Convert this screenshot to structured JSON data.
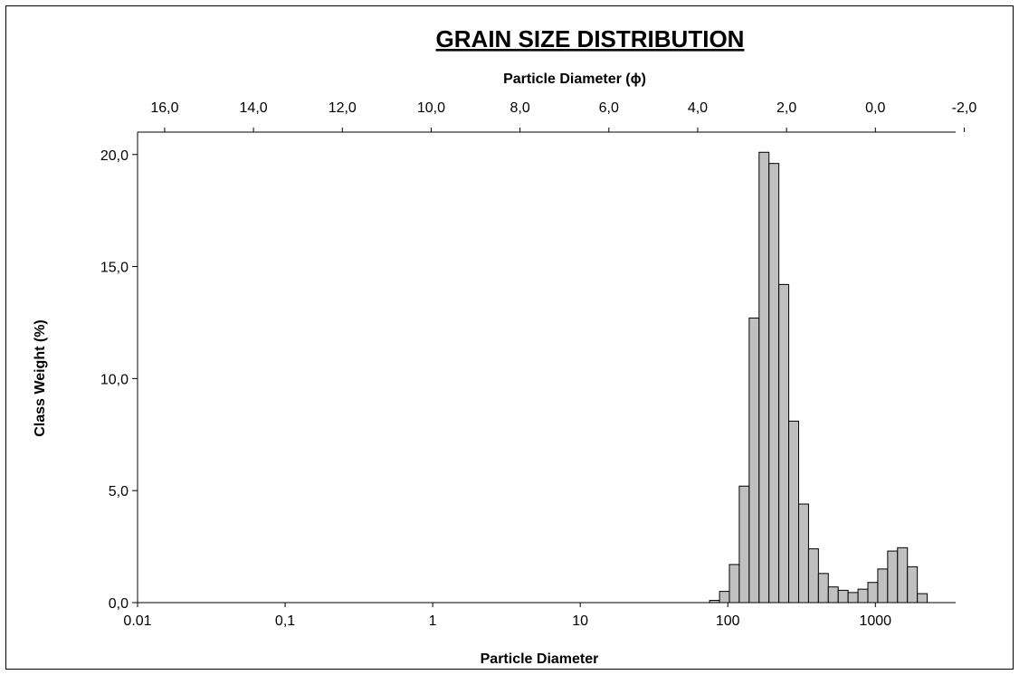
{
  "chart_data": {
    "type": "bar",
    "title": "GRAIN SIZE DISTRIBUTION",
    "xlabel": "Particle Diameter",
    "x2label": "Particle Diameter (ϕ)",
    "ylabel": "Class Weight (%)",
    "x_scale": "log",
    "xlim": [
      0.01,
      3500
    ],
    "ylim": [
      0,
      21
    ],
    "x_ticks": [
      {
        "v": 0.01,
        "label": "0.01"
      },
      {
        "v": 0.1,
        "label": "0,1"
      },
      {
        "v": 1,
        "label": "1"
      },
      {
        "v": 10,
        "label": "10"
      },
      {
        "v": 100,
        "label": "100"
      },
      {
        "v": 1000,
        "label": "1000"
      }
    ],
    "x2_ticks": [
      {
        "phi": 16,
        "label": "16,0"
      },
      {
        "phi": 14,
        "label": "14,0"
      },
      {
        "phi": 12,
        "label": "12,0"
      },
      {
        "phi": 10,
        "label": "10,0"
      },
      {
        "phi": 8,
        "label": "8,0"
      },
      {
        "phi": 6,
        "label": "6,0"
      },
      {
        "phi": 4,
        "label": "4,0"
      },
      {
        "phi": 2,
        "label": "2,0"
      },
      {
        "phi": 0,
        "label": "0,0"
      },
      {
        "phi": -2,
        "label": "-2,0"
      }
    ],
    "y_ticks": [
      {
        "v": 0,
        "label": "0,0"
      },
      {
        "v": 5,
        "label": "5,0"
      },
      {
        "v": 10,
        "label": "10,0"
      },
      {
        "v": 15,
        "label": "15,0"
      },
      {
        "v": 20,
        "label": "20,0"
      }
    ],
    "bar_color": "#c0c0c0",
    "bars": [
      {
        "x0": 75.3,
        "x1": 87.9,
        "value": 0.1
      },
      {
        "x0": 87.9,
        "x1": 102.5,
        "value": 0.5
      },
      {
        "x0": 102.5,
        "x1": 119.6,
        "value": 1.7
      },
      {
        "x0": 119.6,
        "x1": 139.6,
        "value": 5.2
      },
      {
        "x0": 139.6,
        "x1": 162.9,
        "value": 12.7
      },
      {
        "x0": 162.9,
        "x1": 190.1,
        "value": 20.1
      },
      {
        "x0": 190.1,
        "x1": 221.8,
        "value": 19.6
      },
      {
        "x0": 221.8,
        "x1": 258.8,
        "value": 14.2
      },
      {
        "x0": 258.8,
        "x1": 302.0,
        "value": 8.1
      },
      {
        "x0": 302.0,
        "x1": 352.4,
        "value": 4.4
      },
      {
        "x0": 352.4,
        "x1": 411.2,
        "value": 2.4
      },
      {
        "x0": 411.2,
        "x1": 479.8,
        "value": 1.3
      },
      {
        "x0": 479.8,
        "x1": 559.9,
        "value": 0.7
      },
      {
        "x0": 559.9,
        "x1": 653.3,
        "value": 0.55
      },
      {
        "x0": 653.3,
        "x1": 762.3,
        "value": 0.45
      },
      {
        "x0": 762.3,
        "x1": 889.5,
        "value": 0.6
      },
      {
        "x0": 889.5,
        "x1": 1038.0,
        "value": 0.9
      },
      {
        "x0": 1038.0,
        "x1": 1211.2,
        "value": 1.5
      },
      {
        "x0": 1211.2,
        "x1": 1413.3,
        "value": 2.3
      },
      {
        "x0": 1413.3,
        "x1": 1649.2,
        "value": 2.45
      },
      {
        "x0": 1649.2,
        "x1": 1924.4,
        "value": 1.6
      },
      {
        "x0": 1924.4,
        "x1": 2245.6,
        "value": 0.4
      }
    ]
  }
}
